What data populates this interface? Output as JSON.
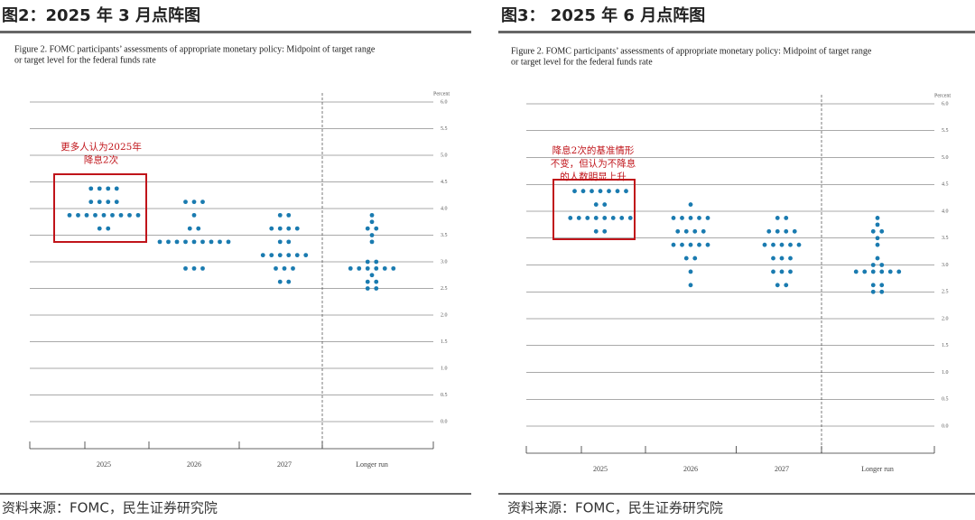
{
  "headings": [
    "图2：2025 年 3 月点阵图",
    "图3：  2025 年 6 月点阵图"
  ],
  "sources": [
    "资料来源：FOMC，民生证券研究院",
    "资料来源：FOMC，民生证券研究院"
  ],
  "chart_data": [
    {
      "type": "dot_plot",
      "title": [
        "Figure 2.  FOMC participants’ assessments of appropriate monetary policy:  Midpoint of target range",
        "or target level for the federal funds rate"
      ],
      "y_label": "Percent",
      "annotation": [
        "更多人认为2025年",
        "降息2次"
      ],
      "color": "#1a7bb0",
      "categories": [
        "2025",
        "2026",
        "2027",
        "Longer run"
      ],
      "values": [
        [
          4.375,
          4.375,
          4.375,
          4.375,
          4.125,
          4.125,
          4.125,
          4.125,
          3.875,
          3.875,
          3.875,
          3.875,
          3.875,
          3.875,
          3.875,
          3.875,
          3.875,
          3.625,
          3.625
        ],
        [
          4.125,
          4.125,
          4.125,
          3.875,
          3.625,
          3.625,
          3.375,
          3.375,
          3.375,
          3.375,
          3.375,
          3.375,
          3.375,
          3.375,
          3.375,
          2.875,
          2.875,
          2.875
        ],
        [
          3.875,
          3.875,
          3.625,
          3.625,
          3.625,
          3.625,
          3.375,
          3.375,
          3.125,
          3.125,
          3.125,
          3.125,
          3.125,
          3.125,
          2.875,
          2.875,
          2.875,
          2.625,
          2.625
        ],
        [
          3.875,
          3.75,
          3.625,
          3.625,
          3.5,
          3.375,
          3.0,
          3.0,
          2.875,
          2.875,
          2.875,
          2.875,
          2.875,
          2.875,
          2.75,
          2.625,
          2.625,
          2.5,
          2.5
        ]
      ],
      "ylim": [
        0,
        6
      ],
      "yticks": [
        {
          "value": 0,
          "label": "0.0"
        },
        {
          "value": 0.5,
          "label": "0.5"
        },
        {
          "value": 1,
          "label": "1.0"
        },
        {
          "value": 1.5,
          "label": "1.5"
        },
        {
          "value": 2,
          "label": "2.0"
        },
        {
          "value": 2.5,
          "label": "2.5"
        },
        {
          "value": 3,
          "label": "3.0"
        },
        {
          "value": 3.5,
          "label": "3.5"
        },
        {
          "value": 4,
          "label": "4.0"
        },
        {
          "value": 4.5,
          "label": "4.5"
        },
        {
          "value": 5,
          "label": "5.0"
        },
        {
          "value": 5.5,
          "label": "5.5"
        },
        {
          "value": 6,
          "label": "6.0"
        }
      ],
      "grid": true
    },
    {
      "type": "dot_plot",
      "title": [
        "Figure 2.  FOMC participants’ assessments of appropriate monetary policy:  Midpoint of target range",
        "or target level for the federal funds rate"
      ],
      "y_label": "Percent",
      "annotation": [
        "降息2次的基准情形",
        "不变，但认为不降息",
        "的人数明显上升"
      ],
      "color": "#1a7bb0",
      "categories": [
        "2025",
        "2026",
        "2027",
        "Longer run"
      ],
      "values": [
        [
          4.375,
          4.375,
          4.375,
          4.375,
          4.375,
          4.375,
          4.375,
          4.125,
          4.125,
          3.875,
          3.875,
          3.875,
          3.875,
          3.875,
          3.875,
          3.875,
          3.875,
          3.625,
          3.625
        ],
        [
          4.125,
          3.875,
          3.875,
          3.875,
          3.875,
          3.875,
          3.625,
          3.625,
          3.625,
          3.625,
          3.375,
          3.375,
          3.375,
          3.375,
          3.375,
          3.125,
          3.125,
          2.875,
          2.625
        ],
        [
          3.875,
          3.875,
          3.625,
          3.625,
          3.625,
          3.625,
          3.375,
          3.375,
          3.375,
          3.375,
          3.375,
          3.125,
          3.125,
          3.125,
          2.875,
          2.875,
          2.875,
          2.625,
          2.625
        ],
        [
          3.875,
          3.75,
          3.625,
          3.625,
          3.5,
          3.375,
          3.125,
          3.0,
          3.0,
          2.875,
          2.875,
          2.875,
          2.875,
          2.875,
          2.875,
          2.625,
          2.625,
          2.5,
          2.5
        ]
      ],
      "ylim": [
        0,
        6
      ],
      "yticks": [
        {
          "value": 0,
          "label": "0.0"
        },
        {
          "value": 0.5,
          "label": "0.5"
        },
        {
          "value": 1,
          "label": "1.0"
        },
        {
          "value": 1.5,
          "label": "1.5"
        },
        {
          "value": 2,
          "label": "2.0"
        },
        {
          "value": 2.5,
          "label": "2.5"
        },
        {
          "value": 3,
          "label": "3.0"
        },
        {
          "value": 3.5,
          "label": "3.5"
        },
        {
          "value": 4,
          "label": "4.0"
        },
        {
          "value": 4.5,
          "label": "4.5"
        },
        {
          "value": 5,
          "label": "5.0"
        },
        {
          "value": 5.5,
          "label": "5.5"
        },
        {
          "value": 6,
          "label": "6.0"
        }
      ],
      "grid": true
    }
  ]
}
